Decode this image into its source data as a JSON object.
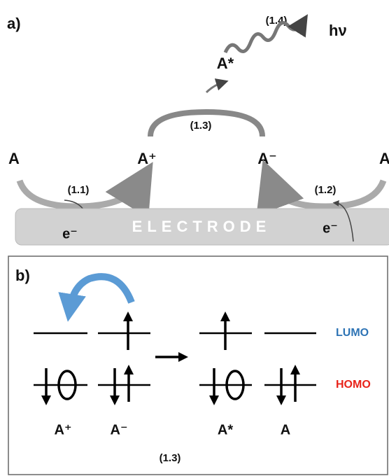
{
  "panel_a": {
    "label": "a)",
    "emission": {
      "step": "(1.4)",
      "product": "hν"
    },
    "excited": "A*",
    "annihilation_step": "(1.3)",
    "species": [
      "A",
      "A⁺",
      "A⁻",
      "A"
    ],
    "oxidation": {
      "step": "(1.1)",
      "electron": "e⁻"
    },
    "reduction": {
      "step": "(1.2)",
      "electron": "e⁻"
    },
    "electrode": "ELECTRODE"
  },
  "panel_b": {
    "label": "b)",
    "levels": {
      "lumo": "LUMO",
      "homo": "HOMO"
    },
    "species": [
      "A⁺",
      "A⁻",
      "A*",
      "A"
    ],
    "step": "(1.3)"
  }
}
